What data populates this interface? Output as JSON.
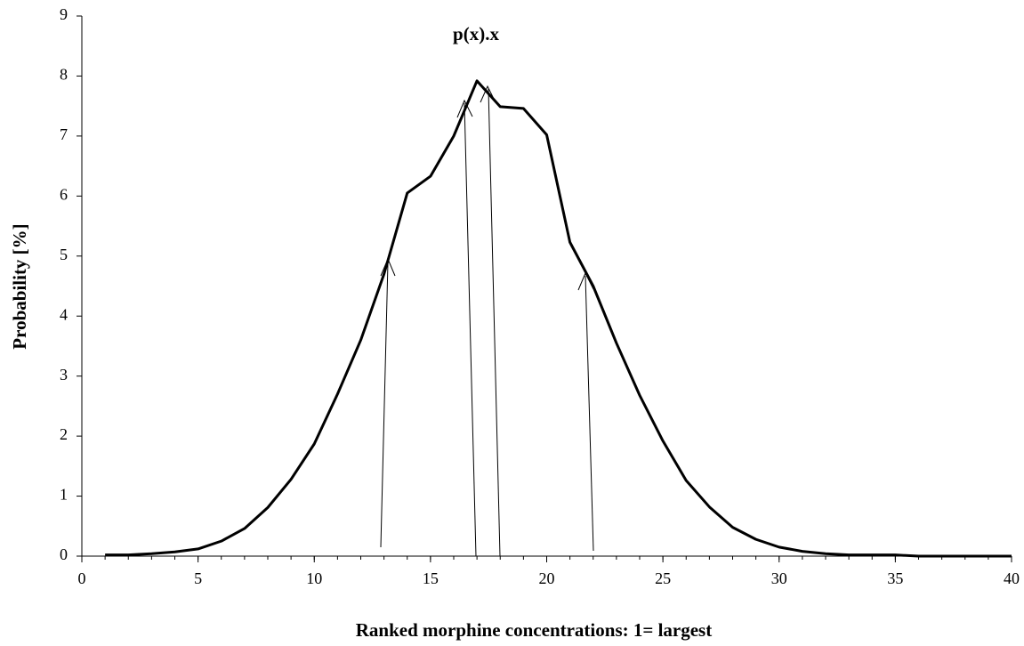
{
  "chart_data": {
    "type": "line",
    "title": "p(x).x",
    "x_label": "Ranked morphine concentrations: 1= largest",
    "y_label": "Probability [%]",
    "x": [
      1,
      2,
      3,
      4,
      5,
      6,
      7,
      8,
      9,
      10,
      11,
      12,
      13,
      14,
      15,
      16,
      17,
      18,
      19,
      20,
      21,
      22,
      23,
      24,
      25,
      26,
      27,
      28,
      29,
      30,
      31,
      32,
      33,
      34,
      35,
      36,
      37,
      38,
      39,
      40
    ],
    "series": [
      {
        "name": "p(x).x",
        "color": "#000000",
        "values": [
          0.02,
          0.02,
          0.04,
          0.07,
          0.12,
          0.25,
          0.46,
          0.81,
          1.28,
          1.87,
          2.7,
          3.6,
          4.7,
          6.05,
          6.33,
          7.0,
          7.92,
          7.49,
          7.46,
          7.02,
          5.23,
          4.5,
          3.55,
          2.68,
          1.92,
          1.26,
          0.82,
          0.48,
          0.28,
          0.15,
          0.08,
          0.04,
          0.02,
          0.02,
          0.02,
          0.0,
          0.0,
          0.0,
          0.0,
          0.0
        ]
      }
    ],
    "xlim": [
      0,
      40
    ],
    "xticks": [
      0,
      5,
      10,
      15,
      20,
      25,
      30,
      35,
      40
    ],
    "ylim": [
      0,
      9
    ],
    "yticks": [
      0,
      1,
      2,
      3,
      4,
      5,
      6,
      7,
      8,
      9
    ]
  }
}
